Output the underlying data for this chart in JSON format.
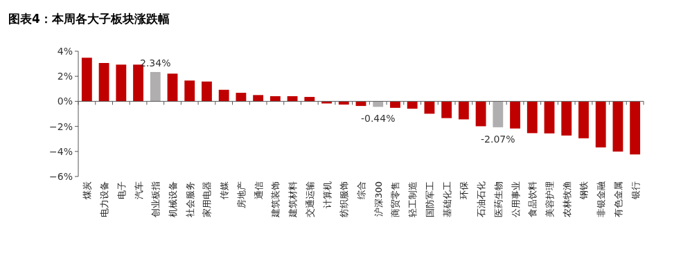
{
  "chart_data": {
    "type": "bar",
    "title": "图表4：本周各大子板块涨跌幅",
    "categories": [
      "煤炭",
      "电力设备",
      "电子",
      "汽车",
      "创业板指",
      "机械设备",
      "社会服务",
      "家用电器",
      "传媒",
      "房地产",
      "通信",
      "建筑装饰",
      "建筑材料",
      "交通运输",
      "计算机",
      "纺织服饰",
      "综合",
      "沪深300",
      "商贸零售",
      "轻工制造",
      "国防军工",
      "基础化工",
      "环保",
      "石油石化",
      "医药生物",
      "公用事业",
      "食品饮料",
      "美容护理",
      "农林牧渔",
      "钢铁",
      "非银金融",
      "有色金属",
      "银行"
    ],
    "values": [
      3.48,
      3.06,
      2.93,
      2.93,
      2.34,
      2.21,
      1.66,
      1.58,
      0.92,
      0.68,
      0.5,
      0.41,
      0.41,
      0.35,
      -0.17,
      -0.26,
      -0.37,
      -0.44,
      -0.52,
      -0.59,
      -0.99,
      -1.34,
      -1.44,
      -1.99,
      -2.07,
      -2.17,
      -2.54,
      -2.56,
      -2.73,
      -2.95,
      -3.68,
      -4.01,
      -4.24
    ],
    "colors": [
      "#c00000",
      "#c00000",
      "#c00000",
      "#c00000",
      "#b0aeae",
      "#c00000",
      "#c00000",
      "#c00000",
      "#c00000",
      "#c00000",
      "#c00000",
      "#c00000",
      "#c00000",
      "#c00000",
      "#c00000",
      "#c00000",
      "#c00000",
      "#b0aeae",
      "#c00000",
      "#c00000",
      "#c00000",
      "#c00000",
      "#c00000",
      "#c00000",
      "#b0aeae",
      "#c00000",
      "#c00000",
      "#c00000",
      "#c00000",
      "#c00000",
      "#c00000",
      "#c00000",
      "#c00000"
    ],
    "value_labels": [
      null,
      null,
      null,
      null,
      "2.34%",
      null,
      null,
      null,
      null,
      null,
      null,
      null,
      null,
      null,
      null,
      null,
      null,
      "-0.44%",
      null,
      null,
      null,
      null,
      null,
      null,
      "-2.07%",
      null,
      null,
      null,
      null,
      null,
      null,
      null,
      null
    ],
    "ylim": [
      -6,
      4
    ],
    "yticks": [
      {
        "value": -6,
        "label": "−6%"
      },
      {
        "value": -4,
        "label": "−4%"
      },
      {
        "value": -2,
        "label": "−2%"
      },
      {
        "value": 0,
        "label": "0%"
      },
      {
        "value": 2,
        "label": "2%"
      },
      {
        "value": 4,
        "label": "4%"
      }
    ]
  }
}
